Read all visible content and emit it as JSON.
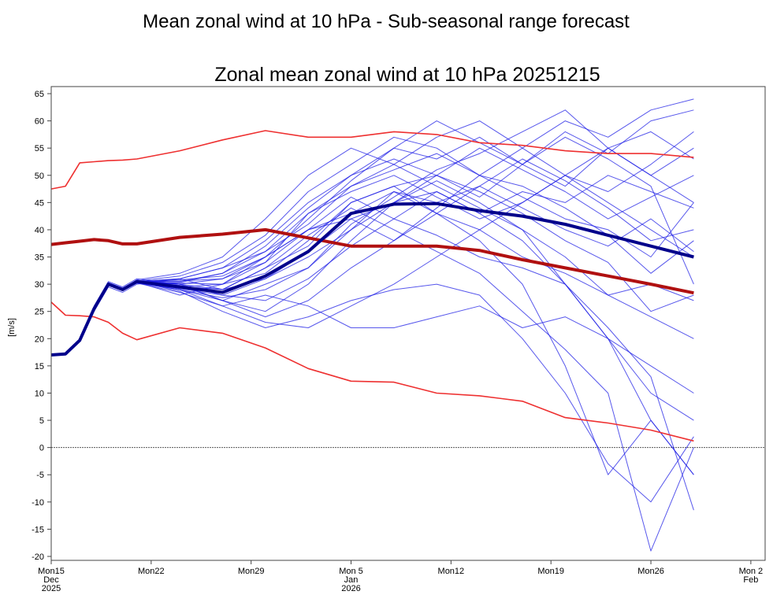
{
  "page_title": "Mean zonal wind at 10 hPa - Sub-seasonal range forecast",
  "chart_data": {
    "type": "line",
    "title": "Zonal mean zonal wind at 10 hPa 20251215",
    "xlabel": "",
    "ylabel": "[m/s]",
    "ylim": [
      -20,
      65
    ],
    "yticks": [
      65,
      60,
      55,
      50,
      45,
      40,
      35,
      30,
      25,
      20,
      15,
      10,
      5,
      0,
      -5,
      -10,
      -15,
      -20
    ],
    "xlim": [
      "2025-12-15",
      "2026-02-03"
    ],
    "xtick_labels": [
      {
        "date": "2025-12-15",
        "lines": [
          "Mon15",
          "Dec",
          "2025"
        ]
      },
      {
        "date": "2025-12-22",
        "lines": [
          "Mon22"
        ]
      },
      {
        "date": "2025-12-29",
        "lines": [
          "Mon29"
        ]
      },
      {
        "date": "2026-01-05",
        "lines": [
          "Mon 5",
          "Jan",
          "2026"
        ]
      },
      {
        "date": "2026-01-12",
        "lines": [
          "Mon12"
        ]
      },
      {
        "date": "2026-01-19",
        "lines": [
          "Mon19"
        ]
      },
      {
        "date": "2026-01-26",
        "lines": [
          "Mon26"
        ]
      },
      {
        "date": "2026-02-02",
        "lines": [
          "Mon 2",
          "Feb"
        ]
      }
    ],
    "grid": false,
    "reference_line": {
      "y": 0,
      "style": "dashed",
      "color": "#555555"
    },
    "x": [
      "2025-12-15",
      "2025-12-16",
      "2025-12-17",
      "2025-12-18",
      "2025-12-19",
      "2025-12-20",
      "2025-12-21",
      "2025-12-24",
      "2025-12-27",
      "2025-12-30",
      "2026-01-02",
      "2026-01-05",
      "2026-01-08",
      "2026-01-11",
      "2026-01-14",
      "2026-01-17",
      "2026-01-20",
      "2026-01-23",
      "2026-01-26",
      "2026-01-29"
    ],
    "colors": {
      "members": "#1f1fe6",
      "ensemble_mean": "#00008b",
      "climate_mean": "#b01010",
      "climate_bounds": "#ee3030"
    },
    "climate_upper": [
      47.5,
      48,
      52.3,
      52.5,
      52.7,
      52.8,
      53,
      54.5,
      56.5,
      58.2,
      57,
      57,
      58,
      57.5,
      56,
      55.5,
      54.5,
      54,
      54,
      53.3
    ],
    "climate_mean": [
      37.3,
      37.6,
      37.9,
      38.2,
      38,
      37.4,
      37.4,
      38.6,
      39.2,
      40,
      38.5,
      37,
      37,
      37,
      36.2,
      34.5,
      33,
      31.5,
      30,
      28.4
    ],
    "climate_lower": [
      26.7,
      24.3,
      24.2,
      24,
      23,
      21,
      19.8,
      22,
      21,
      18.3,
      14.5,
      12.2,
      12,
      10,
      9.5,
      8.5,
      5.5,
      4.5,
      3.2,
      1.2
    ],
    "ensemble_mean": [
      17,
      17.2,
      19.7,
      25.5,
      30,
      29,
      30.5,
      29.5,
      28.5,
      31.5,
      36,
      43,
      44.7,
      44.8,
      43.5,
      42.5,
      41,
      39,
      37,
      35
    ],
    "members": [
      [
        17,
        17.2,
        19.5,
        25,
        29.5,
        28.5,
        30,
        31,
        33,
        38,
        45,
        50,
        55,
        53,
        57,
        52,
        48,
        55,
        50,
        45
      ],
      [
        17,
        17.3,
        19.8,
        26,
        30.5,
        29.5,
        31,
        30,
        27,
        25,
        30,
        38,
        45,
        50,
        46,
        52,
        58,
        54,
        60,
        62
      ],
      [
        17,
        17.1,
        19.6,
        25.3,
        29.8,
        28.8,
        30.2,
        29,
        26,
        23,
        22,
        26,
        30,
        35,
        40,
        45,
        50,
        47,
        52,
        58
      ],
      [
        17,
        17.2,
        19.9,
        25.6,
        30.2,
        29.2,
        30.8,
        32,
        35,
        42,
        50,
        55,
        52,
        48,
        44,
        40,
        30,
        20,
        10,
        5
      ],
      [
        17,
        17.2,
        19.7,
        25.4,
        29.9,
        29.1,
        30.4,
        28,
        30,
        35,
        40,
        42,
        38,
        44,
        50,
        48,
        44,
        39,
        32,
        38
      ],
      [
        17,
        17.2,
        19.6,
        25.5,
        30.1,
        29,
        30.6,
        30.5,
        32,
        36,
        41,
        48,
        52,
        57,
        60,
        55,
        50,
        45,
        40,
        35
      ],
      [
        17,
        17.2,
        19.8,
        25.5,
        30,
        29.2,
        30.3,
        29,
        27,
        30,
        33,
        40,
        47,
        43,
        38,
        30,
        15,
        -5,
        5,
        -5
      ],
      [
        17,
        17.1,
        19.7,
        25.4,
        30,
        28.9,
        30.5,
        31,
        29,
        33,
        39,
        44,
        40,
        36,
        32,
        25,
        18,
        10,
        -19,
        0
      ],
      [
        17,
        17.2,
        19.7,
        25.6,
        30.3,
        29.3,
        30.7,
        30,
        31,
        34,
        43,
        47,
        50,
        46,
        42,
        45,
        50,
        55,
        58,
        53
      ],
      [
        17,
        17.2,
        19.6,
        25.4,
        29.8,
        29,
        30.2,
        28.5,
        26,
        28,
        26,
        22,
        22,
        24,
        26,
        22,
        24,
        20,
        15,
        10
      ],
      [
        17,
        17.3,
        19.8,
        25.5,
        30,
        29.1,
        30.4,
        29.5,
        30,
        32,
        38,
        45,
        48,
        50,
        47,
        43,
        38,
        34,
        25,
        28
      ],
      [
        17,
        17.2,
        19.7,
        25.5,
        30.1,
        29.2,
        30.6,
        31.5,
        34,
        39,
        47,
        52,
        57,
        55,
        50,
        55,
        60,
        57,
        62,
        64
      ],
      [
        17,
        17.2,
        19.7,
        25.5,
        30,
        29.1,
        30.5,
        30,
        28,
        27,
        31,
        37,
        42,
        39,
        35,
        33,
        30,
        22,
        13,
        -11.5
      ],
      [
        17,
        17.2,
        19.7,
        25.4,
        29.9,
        29,
        30.4,
        29.2,
        28,
        31,
        35,
        40,
        45,
        49,
        45,
        40,
        35,
        28,
        30,
        27
      ],
      [
        17,
        17.1,
        19.6,
        25.5,
        30,
        29.1,
        30.3,
        30.3,
        32,
        37,
        44,
        50,
        53,
        50,
        55,
        51,
        47,
        42,
        46,
        50
      ],
      [
        17,
        17.2,
        19.8,
        25.5,
        30.1,
        29.2,
        30.6,
        29.8,
        27,
        24,
        27,
        33,
        38,
        43,
        48,
        53,
        49,
        44,
        38,
        40
      ],
      [
        17,
        17.2,
        19.7,
        25.5,
        30,
        29.1,
        30.4,
        30.6,
        31,
        35,
        40,
        46,
        42,
        47,
        43,
        38,
        30,
        20,
        5,
        -5
      ],
      [
        17,
        17.2,
        19.7,
        25.5,
        30,
        29,
        30.5,
        29,
        27.5,
        29,
        33,
        41,
        46,
        51,
        54,
        58,
        62,
        55,
        50,
        55
      ],
      [
        17,
        17.2,
        19.7,
        25.5,
        30,
        29.1,
        30.5,
        30,
        29,
        33,
        37,
        45,
        48,
        43,
        40,
        35,
        32,
        28,
        24,
        20
      ],
      [
        17,
        17.2,
        19.7,
        25.5,
        30,
        29.1,
        30.5,
        31,
        33,
        36,
        43,
        48,
        51,
        54,
        50,
        46,
        42,
        40,
        35,
        45
      ],
      [
        17,
        17.2,
        19.7,
        25.5,
        30,
        29.1,
        30.5,
        28.7,
        25,
        22,
        24,
        27,
        29,
        30,
        28,
        20,
        10,
        -3,
        -10,
        2
      ],
      [
        17,
        17.2,
        19.7,
        25.5,
        30,
        29.1,
        30.5,
        30.2,
        30,
        34,
        40,
        43,
        47,
        45,
        48,
        44,
        40,
        37,
        42,
        36
      ],
      [
        17,
        17.2,
        19.7,
        25.5,
        30,
        29.1,
        30.5,
        29.6,
        29,
        31,
        36,
        42,
        45,
        47,
        43,
        47,
        45,
        50,
        47,
        44
      ],
      [
        17,
        17.2,
        19.7,
        25.5,
        30,
        29.1,
        30.5,
        30.8,
        31.5,
        35,
        42,
        49,
        55,
        60,
        56,
        52,
        57,
        53,
        48,
        30
      ]
    ]
  }
}
